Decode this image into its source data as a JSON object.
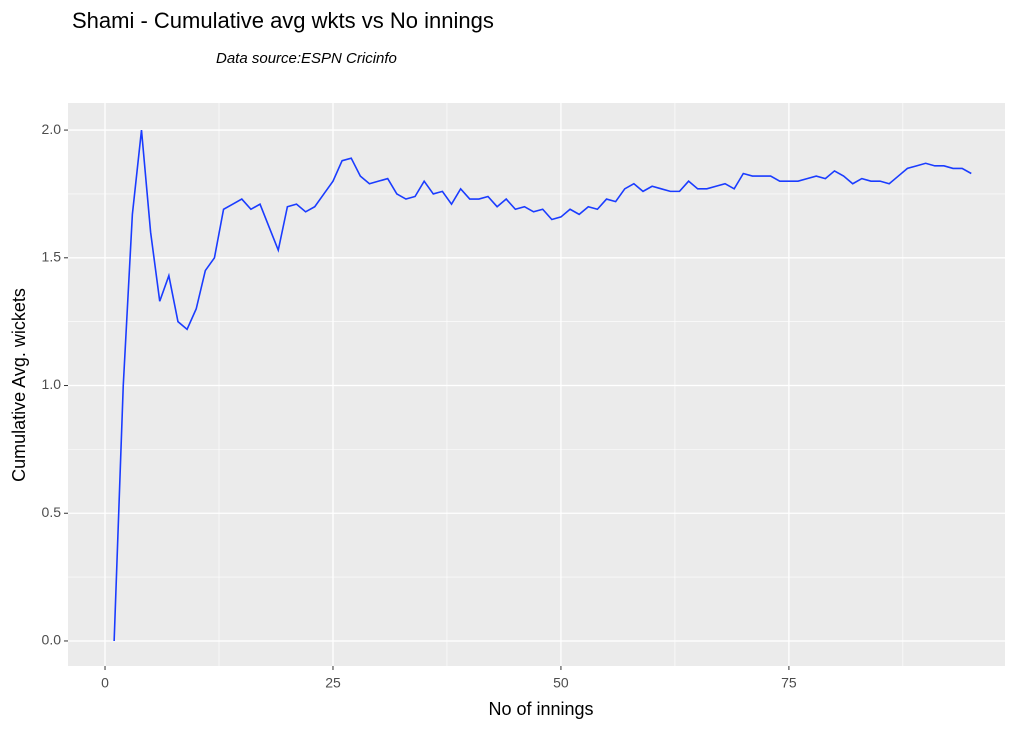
{
  "chart_data": {
    "type": "line",
    "title": "Shami - Cumulative avg wkts vs No innings",
    "subtitle": "Data source:ESPN Cricinfo",
    "xlabel": "No of innings",
    "ylabel": "Cumulative Avg. wickets",
    "x": [
      1,
      2,
      3,
      4,
      5,
      6,
      7,
      8,
      9,
      10,
      11,
      12,
      13,
      14,
      15,
      16,
      17,
      18,
      19,
      20,
      21,
      22,
      23,
      24,
      25,
      26,
      27,
      28,
      29,
      30,
      31,
      32,
      33,
      34,
      35,
      36,
      37,
      38,
      39,
      40,
      41,
      42,
      43,
      44,
      45,
      46,
      47,
      48,
      49,
      50,
      51,
      52,
      53,
      54,
      55,
      56,
      57,
      58,
      59,
      60,
      61,
      62,
      63,
      64,
      65,
      66,
      67,
      68,
      69,
      70,
      71,
      72,
      73,
      74,
      75,
      76,
      77,
      78,
      79,
      80,
      81,
      82,
      83,
      84,
      85,
      86,
      87,
      88,
      89,
      90,
      91,
      92,
      93,
      94,
      95
    ],
    "series": [
      {
        "name": "Cumulative Avg. wickets",
        "color": "#1a3cff",
        "values": [
          0,
          1.0,
          1.67,
          2.0,
          1.6,
          1.33,
          1.43,
          1.25,
          1.22,
          1.3,
          1.45,
          1.5,
          1.69,
          1.71,
          1.73,
          1.69,
          1.71,
          1.62,
          1.53,
          1.7,
          1.71,
          1.68,
          1.7,
          1.75,
          1.8,
          1.88,
          1.89,
          1.82,
          1.79,
          1.8,
          1.81,
          1.75,
          1.73,
          1.74,
          1.8,
          1.75,
          1.76,
          1.71,
          1.77,
          1.73,
          1.73,
          1.74,
          1.7,
          1.73,
          1.69,
          1.7,
          1.68,
          1.69,
          1.65,
          1.66,
          1.69,
          1.67,
          1.7,
          1.69,
          1.73,
          1.72,
          1.77,
          1.79,
          1.76,
          1.78,
          1.77,
          1.76,
          1.76,
          1.8,
          1.77,
          1.77,
          1.78,
          1.79,
          1.77,
          1.83,
          1.82,
          1.82,
          1.82,
          1.8,
          1.8,
          1.8,
          1.81,
          1.82,
          1.81,
          1.84,
          1.82,
          1.79,
          1.81,
          1.8,
          1.8,
          1.79,
          1.82,
          1.85,
          1.86,
          1.87,
          1.86,
          1.86,
          1.85,
          1.85,
          1.83
        ]
      }
    ],
    "xlim": [
      -4.06,
      98.7
    ],
    "ylim": [
      -0.098,
      2.106
    ],
    "xticks": [
      0,
      25,
      50,
      75
    ],
    "yticks": [
      {
        "value": 0,
        "label": "0.0"
      },
      0.5,
      {
        "value": 1,
        "label": "1.0"
      },
      1.5,
      {
        "value": 2,
        "label": "2.0"
      }
    ],
    "grid": true
  }
}
